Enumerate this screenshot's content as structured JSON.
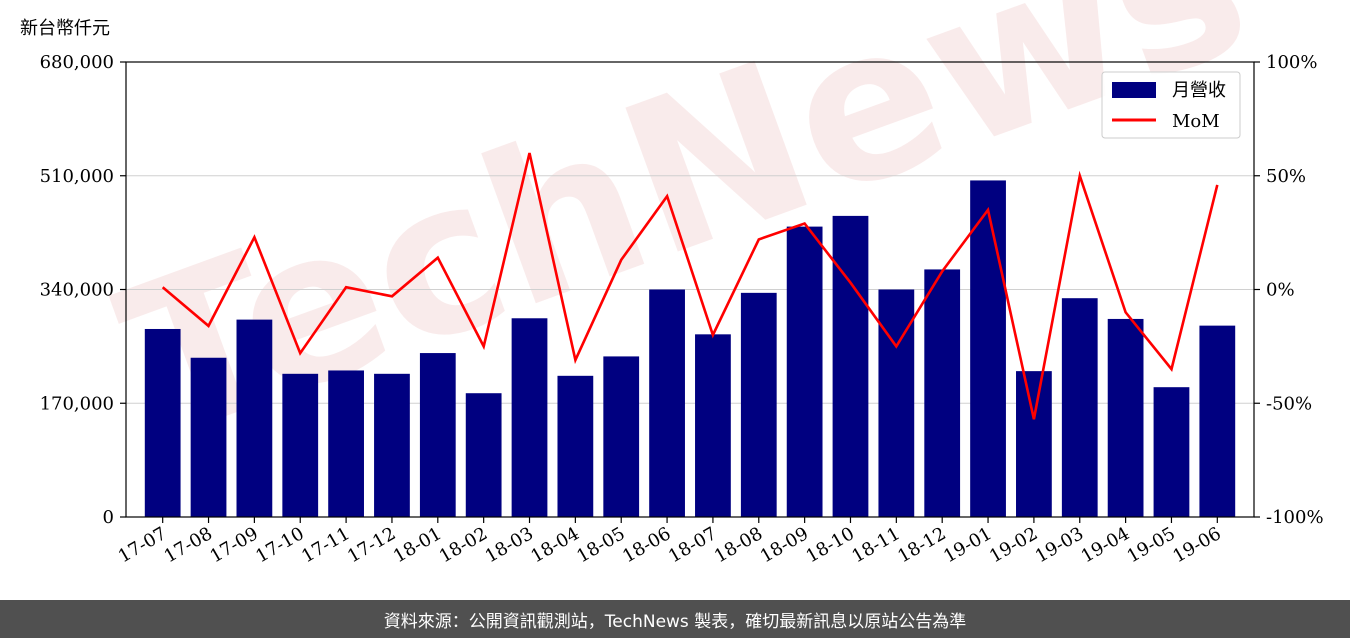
{
  "chart_data": {
    "type": "bar+line",
    "unit_label": "新台幣仟元",
    "categories": [
      "17-07",
      "17-08",
      "17-09",
      "17-10",
      "17-11",
      "17-12",
      "18-01",
      "18-02",
      "18-03",
      "18-04",
      "18-05",
      "18-06",
      "18-07",
      "18-08",
      "18-09",
      "18-10",
      "18-11",
      "18-12",
      "19-01",
      "19-02",
      "19-03",
      "19-04",
      "19-05",
      "19-06"
    ],
    "series": [
      {
        "name": "月營收",
        "axis": "left",
        "kind": "bar",
        "color": "#000080",
        "values": [
          281000,
          238000,
          295000,
          214000,
          219000,
          214000,
          245000,
          185000,
          297000,
          211000,
          240000,
          340000,
          273000,
          335000,
          434000,
          450000,
          340000,
          370000,
          503000,
          218000,
          327000,
          296000,
          194000,
          286000
        ]
      },
      {
        "name": "MoM",
        "axis": "right",
        "kind": "line",
        "color": "#ff0000",
        "values": [
          1,
          -16,
          23,
          -28,
          1,
          -3,
          14,
          -25,
          60,
          -31,
          13,
          41,
          -20,
          22,
          29,
          3,
          -25,
          8,
          35,
          -57,
          50,
          -10,
          -35,
          46
        ]
      }
    ],
    "left_axis": {
      "ticks": [
        "0",
        "170,000",
        "340,000",
        "510,000",
        "680,000"
      ],
      "ylim": [
        0,
        680000
      ]
    },
    "right_axis": {
      "ticks": [
        "-100%",
        "-50%",
        "0%",
        "50%",
        "100%"
      ],
      "ylim": [
        -100,
        100
      ]
    },
    "grid": true,
    "legend_position": "top-right"
  },
  "watermark": "TechNews",
  "footer": {
    "text": "資料來源：公開資訊觀測站，TechNews 製表，確切最新訊息以原站公告為準"
  }
}
